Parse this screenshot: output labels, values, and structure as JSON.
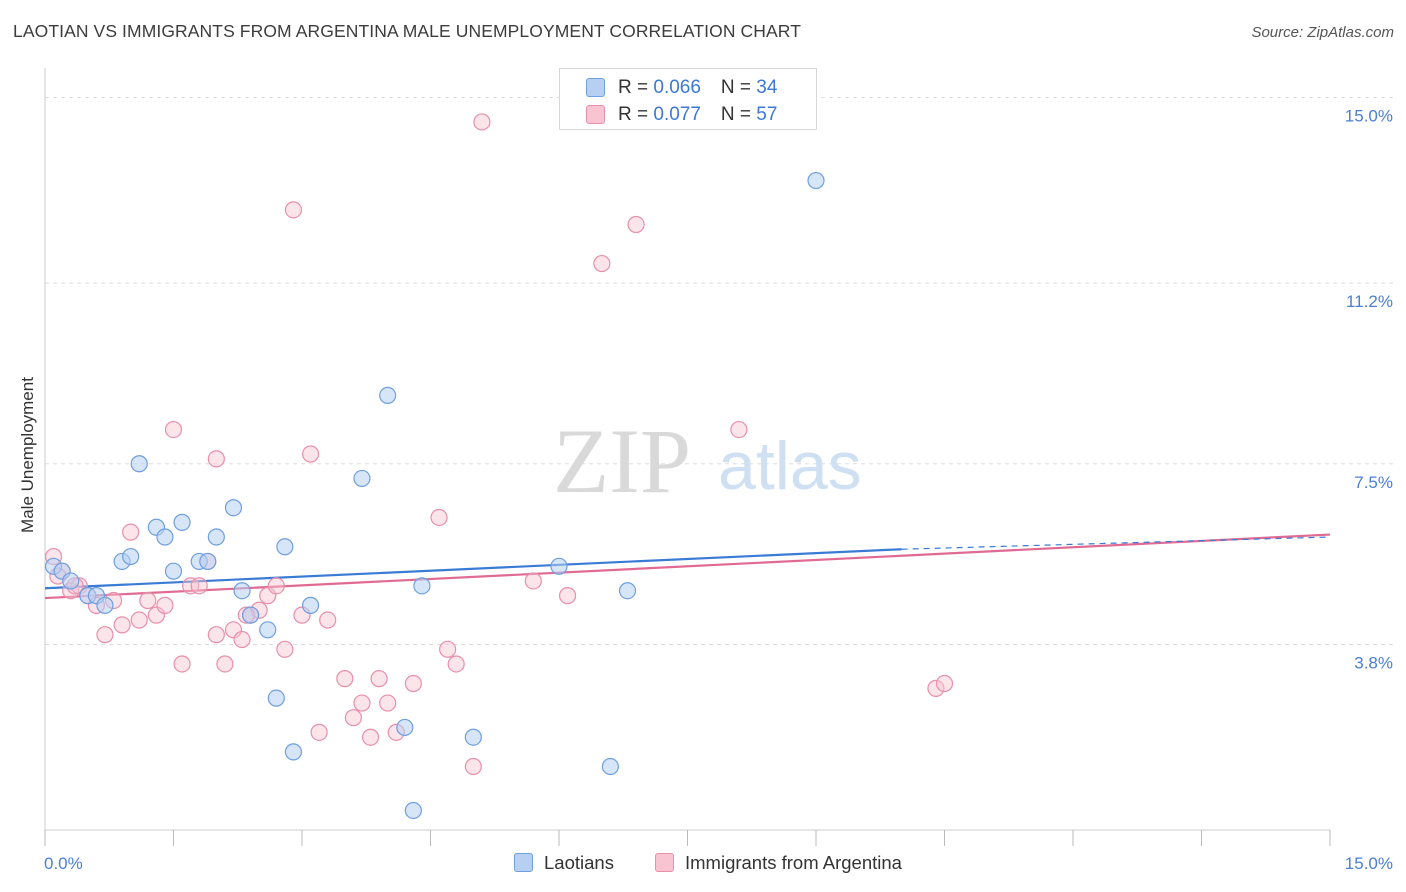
{
  "title": "LAOTIAN VS IMMIGRANTS FROM ARGENTINA MALE UNEMPLOYMENT CORRELATION CHART",
  "source": "Source: ZipAtlas.com",
  "watermark": {
    "zip": "ZIP",
    "atlas": "atlas"
  },
  "legend": {
    "rows": [
      {
        "r_label": "R = ",
        "r_value": "0.066",
        "n_label": "N = ",
        "n_value": "34"
      },
      {
        "r_label": "R = ",
        "r_value": "0.077",
        "n_label": "N = ",
        "n_value": "57"
      }
    ],
    "bottom": [
      "Laotians",
      "Immigrants from Argentina"
    ]
  },
  "colors": {
    "laotians_fill": "#b7d0f2",
    "laotians_stroke": "#6e9fde",
    "laotians_line": "#3a7bd5",
    "argentina_fill": "#f9c4d2",
    "argentina_stroke": "#e88fab",
    "argentina_line": "#e06a93",
    "tick_text": "#4a7fd4",
    "grid": "#dddddd"
  },
  "chart_data": {
    "type": "scatter",
    "title": "LAOTIAN VS IMMIGRANTS FROM ARGENTINA MALE UNEMPLOYMENT CORRELATION CHART",
    "xlabel": "",
    "ylabel": "Male Unemployment",
    "xlim": [
      0,
      15
    ],
    "ylim": [
      0,
      15.4
    ],
    "x_tick_labels": [
      "0.0%",
      "15.0%"
    ],
    "y_ticks": [
      3.8,
      7.5,
      11.2,
      15.0
    ],
    "y_tick_labels": [
      "3.8%",
      "7.5%",
      "11.2%",
      "15.0%"
    ],
    "grid": "horizontal dashed",
    "legend_position": "top-center",
    "series": [
      {
        "name": "Laotians",
        "points": [
          [
            0.1,
            5.4
          ],
          [
            0.2,
            5.3
          ],
          [
            0.3,
            5.1
          ],
          [
            0.5,
            4.8
          ],
          [
            0.6,
            4.8
          ],
          [
            0.7,
            4.6
          ],
          [
            0.9,
            5.5
          ],
          [
            1.0,
            5.6
          ],
          [
            1.1,
            7.5
          ],
          [
            1.3,
            6.2
          ],
          [
            1.4,
            6.0
          ],
          [
            1.5,
            5.3
          ],
          [
            1.6,
            6.3
          ],
          [
            1.8,
            5.5
          ],
          [
            1.9,
            5.5
          ],
          [
            2.0,
            6.0
          ],
          [
            2.2,
            6.6
          ],
          [
            2.3,
            4.9
          ],
          [
            2.4,
            4.4
          ],
          [
            2.6,
            4.1
          ],
          [
            2.7,
            2.7
          ],
          [
            2.8,
            5.8
          ],
          [
            2.9,
            1.6
          ],
          [
            3.1,
            4.6
          ],
          [
            3.7,
            7.2
          ],
          [
            4.0,
            8.9
          ],
          [
            4.2,
            2.1
          ],
          [
            4.3,
            0.4
          ],
          [
            4.4,
            5.0
          ],
          [
            5.0,
            1.9
          ],
          [
            6.0,
            5.4
          ],
          [
            6.6,
            1.3
          ],
          [
            6.8,
            4.9
          ],
          [
            9.0,
            13.3
          ]
        ],
        "trend": {
          "x": [
            0,
            10.0
          ],
          "y": [
            4.95,
            5.75
          ],
          "dashed_extension_to": [
            15,
            6.0
          ]
        }
      },
      {
        "name": "Immigrants from Argentina",
        "points": [
          [
            0.1,
            5.6
          ],
          [
            0.2,
            5.3
          ],
          [
            0.3,
            4.9
          ],
          [
            0.4,
            5.0
          ],
          [
            0.5,
            4.8
          ],
          [
            0.6,
            4.6
          ],
          [
            0.7,
            4.0
          ],
          [
            0.8,
            4.7
          ],
          [
            0.9,
            4.2
          ],
          [
            1.0,
            6.1
          ],
          [
            1.1,
            4.3
          ],
          [
            1.2,
            4.7
          ],
          [
            1.3,
            4.4
          ],
          [
            1.4,
            4.6
          ],
          [
            1.5,
            8.2
          ],
          [
            1.6,
            3.4
          ],
          [
            1.7,
            5.0
          ],
          [
            1.8,
            5.0
          ],
          [
            1.9,
            5.5
          ],
          [
            2.0,
            4.0
          ],
          [
            2.0,
            7.6
          ],
          [
            2.1,
            3.4
          ],
          [
            2.2,
            4.1
          ],
          [
            2.3,
            3.9
          ],
          [
            2.4,
            4.4
          ],
          [
            2.5,
            4.5
          ],
          [
            2.6,
            4.8
          ],
          [
            2.7,
            5.0
          ],
          [
            2.8,
            3.7
          ],
          [
            2.9,
            12.7
          ],
          [
            3.0,
            4.4
          ],
          [
            3.1,
            7.7
          ],
          [
            3.2,
            2.0
          ],
          [
            3.3,
            4.3
          ],
          [
            3.5,
            3.1
          ],
          [
            3.6,
            2.3
          ],
          [
            3.7,
            2.6
          ],
          [
            3.8,
            1.9
          ],
          [
            3.9,
            3.1
          ],
          [
            4.0,
            2.6
          ],
          [
            4.1,
            2.0
          ],
          [
            4.3,
            3.0
          ],
          [
            4.6,
            6.4
          ],
          [
            4.7,
            3.7
          ],
          [
            4.8,
            3.4
          ],
          [
            5.0,
            1.3
          ],
          [
            5.1,
            14.5
          ],
          [
            5.7,
            5.1
          ],
          [
            6.1,
            4.8
          ],
          [
            6.5,
            11.6
          ],
          [
            6.9,
            12.4
          ],
          [
            8.1,
            8.2
          ],
          [
            10.4,
            2.9
          ],
          [
            10.5,
            3.0
          ],
          [
            0.15,
            5.2
          ],
          [
            0.35,
            5.0
          ],
          [
            2.35,
            4.4
          ]
        ],
        "trend": {
          "x": [
            0,
            15
          ],
          "y": [
            4.75,
            6.05
          ]
        }
      }
    ]
  }
}
